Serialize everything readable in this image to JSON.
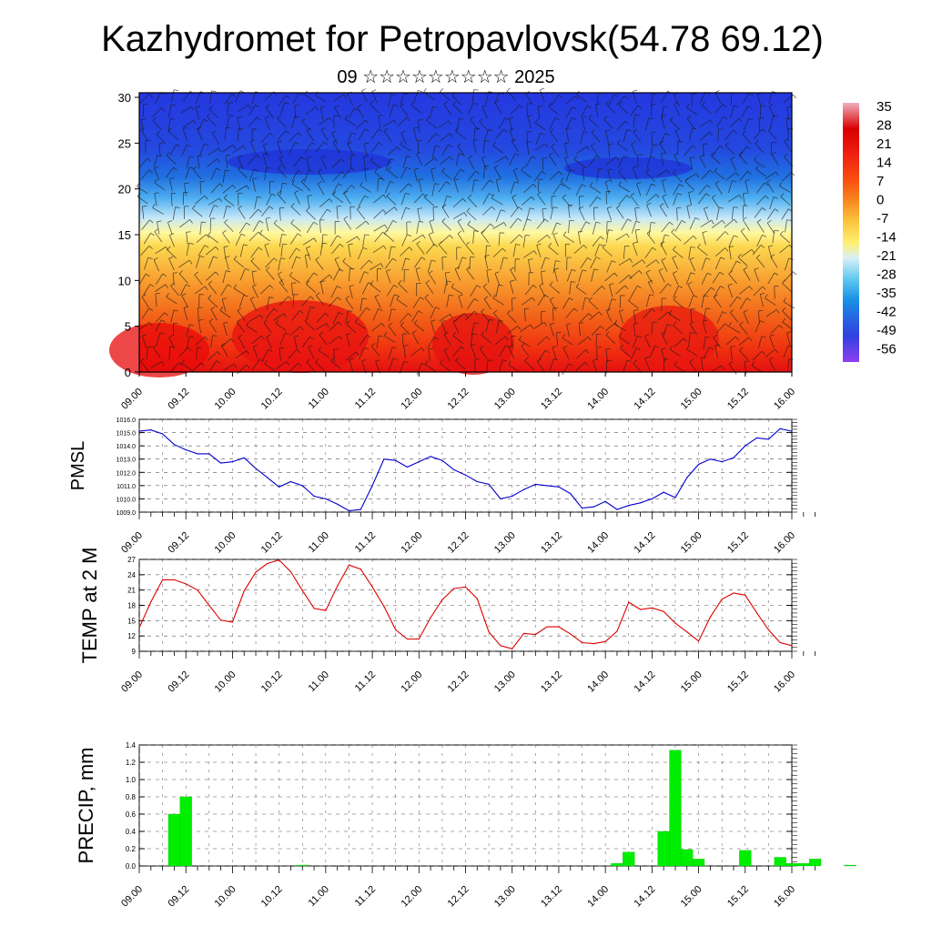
{
  "title": "Kazhydromet for Petropavlovsk(54.78 69.12)",
  "subtitle": "09 ☆☆☆☆☆☆☆☆☆ 2025",
  "time_labels": [
    "09.00",
    "09.12",
    "10.00",
    "10.12",
    "11.00",
    "11.12",
    "12.00",
    "12.12",
    "13.00",
    "13.12",
    "14.00",
    "14.12",
    "15.00",
    "15.12",
    "16.00"
  ],
  "chart_data": [
    {
      "type": "heatmap",
      "name": "cross_section",
      "title": "",
      "xlabel": "",
      "ylabel": "",
      "x_ticks": [
        "09.00",
        "09.12",
        "10.00",
        "10.12",
        "11.00",
        "11.12",
        "12.00",
        "12.12",
        "13.00",
        "13.12",
        "14.00",
        "14.12",
        "15.00",
        "15.12",
        "16.00"
      ],
      "y_ticks": [
        0,
        5,
        10,
        15,
        20,
        25,
        30
      ],
      "ylim": [
        0,
        30.5
      ],
      "colorbar": {
        "labels": [
          35,
          28,
          21,
          14,
          7,
          0,
          -7,
          -14,
          -21,
          -28,
          -35,
          -42,
          -49,
          -56
        ],
        "colors_top_to_bottom": [
          "#f0b0c0",
          "#d80000",
          "#f02010",
          "#f85010",
          "#f88a20",
          "#fbc640",
          "#fff070",
          "#d8f0f8",
          "#60c8f0",
          "#1890e8",
          "#2860e0",
          "#3040e0",
          "#5030e8",
          "#9040f0"
        ]
      },
      "temperature_at_levels": [
        {
          "level": 0,
          "value": 28
        },
        {
          "level": 5,
          "value": 21
        },
        {
          "level": 10,
          "value": 10
        },
        {
          "level": 15,
          "value": -7
        },
        {
          "level": 20,
          "value": -35
        },
        {
          "level": 25,
          "value": -49
        },
        {
          "level": 30,
          "value": -49
        }
      ],
      "wind_barbs": true
    },
    {
      "type": "line",
      "name": "PMSL",
      "ylabel": "PMSL",
      "ylim": [
        1009.0,
        1016.0
      ],
      "y_ticks": [
        1009.0,
        1010.0,
        1011.0,
        1012.0,
        1013.0,
        1014.0,
        1015.0,
        1016.0
      ],
      "x_ticks": [
        "09.00",
        "09.12",
        "10.00",
        "10.12",
        "11.00",
        "11.12",
        "12.00",
        "12.12",
        "13.00",
        "13.12",
        "14.00",
        "14.12",
        "15.00",
        "15.12",
        "16.00"
      ],
      "color": "#0000cc",
      "x": [
        0,
        3,
        6,
        9,
        12,
        15,
        18,
        21,
        24,
        27,
        30,
        33,
        36,
        39,
        42,
        45,
        48,
        51,
        54,
        57,
        60,
        63,
        66,
        69,
        72,
        75,
        78,
        81,
        84,
        87,
        90,
        93,
        96,
        99,
        102,
        105,
        108,
        111,
        114,
        117,
        120,
        123,
        126,
        129,
        132,
        135,
        138,
        141,
        144,
        147,
        150,
        153,
        156,
        159,
        162,
        165,
        168
      ],
      "values": [
        1015.1,
        1015.2,
        1014.9,
        1014.1,
        1013.7,
        1013.4,
        1013.4,
        1012.7,
        1012.8,
        1013.1,
        1012.3,
        1011.6,
        1010.9,
        1011.3,
        1011.0,
        1010.2,
        1010.0,
        1009.6,
        1009.1,
        1009.2,
        1011.0,
        1013.0,
        1012.9,
        1012.4,
        1012.8,
        1013.2,
        1012.9,
        1012.2,
        1011.8,
        1011.3,
        1011.1,
        1010.0,
        1010.2,
        1010.7,
        1011.1,
        1011.0,
        1010.9,
        1010.4,
        1009.3,
        1009.4,
        1009.8,
        1009.2,
        1009.5,
        1009.7,
        1010.0,
        1010.5,
        1010.1,
        1011.6,
        1012.6,
        1013.0,
        1012.8,
        1013.1,
        1014.0,
        1014.6,
        1014.5,
        1015.3,
        1015.1
      ]
    },
    {
      "type": "line",
      "name": "TEMP at 2 M",
      "ylabel": "TEMP at 2 M",
      "ylim": [
        9,
        27
      ],
      "y_ticks": [
        9,
        12,
        15,
        18,
        21,
        24,
        27
      ],
      "x_ticks": [
        "09.00",
        "09.12",
        "10.00",
        "10.12",
        "11.00",
        "11.12",
        "12.00",
        "12.12",
        "13.00",
        "13.12",
        "14.00",
        "14.12",
        "15.00",
        "15.12",
        "16.00"
      ],
      "color": "#dd0000",
      "x": [
        0,
        3,
        6,
        9,
        12,
        15,
        18,
        21,
        24,
        27,
        30,
        33,
        36,
        39,
        42,
        45,
        48,
        51,
        54,
        57,
        60,
        63,
        66,
        69,
        72,
        75,
        78,
        81,
        84,
        87,
        90,
        93,
        96,
        99,
        102,
        105,
        108,
        111,
        114,
        117,
        120,
        123,
        126,
        129,
        132,
        135,
        138,
        141,
        144,
        147,
        150,
        153,
        156,
        159,
        162,
        165,
        168
      ],
      "values": [
        13.6,
        18.7,
        23.0,
        23.0,
        22.2,
        21.0,
        18.0,
        15.1,
        14.7,
        20.8,
        24.5,
        26.2,
        26.9,
        24.6,
        20.9,
        17.4,
        17.0,
        21.8,
        25.9,
        25.1,
        21.6,
        17.8,
        13.2,
        11.4,
        11.4,
        15.6,
        19.1,
        21.3,
        21.6,
        19.3,
        12.8,
        10.1,
        9.5,
        12.5,
        12.3,
        13.8,
        13.8,
        12.4,
        10.7,
        10.5,
        10.9,
        12.9,
        18.6,
        17.2,
        17.5,
        16.8,
        14.5,
        12.8,
        11.0,
        15.7,
        19.2,
        20.4,
        20.0,
        16.5,
        13.2,
        10.7,
        10.1
      ]
    },
    {
      "type": "bar",
      "name": "PRECIP, mm",
      "ylabel": "PRECIP, mm",
      "ylim": [
        0,
        1.4
      ],
      "y_ticks": [
        0.0,
        0.2,
        0.4,
        0.6,
        0.8,
        1.0,
        1.2,
        1.4
      ],
      "x_ticks": [
        "09.00",
        "09.12",
        "10.00",
        "10.12",
        "11.00",
        "11.12",
        "12.00",
        "12.12",
        "13.00",
        "13.12",
        "14.00",
        "14.12",
        "15.00",
        "15.12",
        "16.00"
      ],
      "color": "#00ee00",
      "x": [
        9,
        12,
        42,
        123,
        126,
        135,
        138,
        141,
        144,
        156,
        165,
        168,
        171,
        174,
        183
      ],
      "values": [
        0.6,
        0.8,
        0.01,
        0.03,
        0.16,
        0.4,
        1.34,
        0.19,
        0.08,
        0.18,
        0.1,
        0.03,
        0.03,
        0.08,
        0.01
      ]
    }
  ]
}
